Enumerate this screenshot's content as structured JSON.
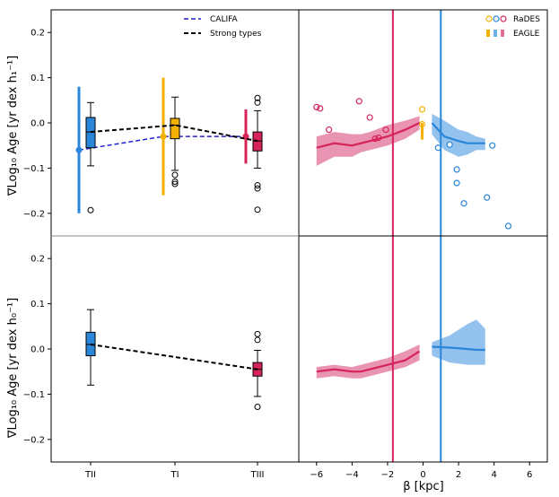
{
  "chart_data": {
    "type": "box+line",
    "ylabel_top": "∇Log₁₀ Age [yr dex h₁⁻¹]",
    "ylabel_bottom": "∇Log₁₀ Age [yr dex h₀⁻¹]",
    "xlabel_right": "β [kpc]",
    "ylim": [
      -0.25,
      0.25
    ],
    "yticks": [
      "0.2",
      "0.1",
      "0.0",
      "−0.1",
      "−0.2"
    ],
    "ytick_values": [
      0.2,
      0.1,
      0.0,
      -0.1,
      -0.2
    ],
    "left_categories": [
      "TII",
      "TI",
      "TIII"
    ],
    "right_xlim": [
      -7,
      7
    ],
    "right_xticks": [
      "−6",
      "−4",
      "−2",
      "0",
      "2",
      "4",
      "6"
    ],
    "right_xtick_values": [
      -6,
      -4,
      -2,
      0,
      2,
      4,
      6
    ],
    "vlines": [
      -1.7,
      1.0
    ],
    "colors": {
      "TII": "#2a86d8",
      "TI": "#f6b100",
      "TIII": "#d6245a",
      "califa_line": "#2222cc",
      "strong_line": "#000000",
      "pink_band": "#e07098",
      "blue_band": "#70aee8"
    },
    "legend_left": [
      {
        "label": "CALIFA",
        "style": "dashed-blue"
      },
      {
        "label": "Strong types",
        "style": "dashed-black"
      }
    ],
    "legend_right": [
      {
        "label": "RaDES",
        "style": "circles"
      },
      {
        "label": "EAGLE",
        "style": "bars"
      }
    ],
    "top_left": {
      "boxes": [
        {
          "cat": "TII",
          "q1": -0.055,
          "median": -0.02,
          "q3": 0.012,
          "wlo": -0.095,
          "whi": 0.045,
          "fliers": [
            -0.193
          ]
        },
        {
          "cat": "TI",
          "q1": -0.035,
          "median": -0.005,
          "q3": 0.01,
          "wlo": -0.105,
          "whi": 0.057,
          "fliers": [
            -0.115,
            -0.13,
            -0.135
          ]
        },
        {
          "cat": "TIII",
          "q1": -0.062,
          "median": -0.04,
          "q3": -0.02,
          "wlo": -0.1,
          "whi": 0.027,
          "fliers": [
            0.055,
            0.045,
            -0.138,
            -0.145,
            -0.192
          ]
        }
      ],
      "strong_types": [
        -0.02,
        -0.005,
        -0.04
      ],
      "califa": [
        {
          "cat": "TII",
          "value": -0.06,
          "err_lo": -0.2,
          "err_hi": 0.08
        },
        {
          "cat": "TI",
          "value": -0.03,
          "err_lo": -0.16,
          "err_hi": 0.1
        },
        {
          "cat": "TIII",
          "value": -0.03,
          "err_lo": -0.09,
          "err_hi": 0.03
        }
      ]
    },
    "bottom_left": {
      "boxes": [
        {
          "cat": "TII",
          "q1": -0.015,
          "median": 0.01,
          "q3": 0.037,
          "wlo": -0.08,
          "whi": 0.087,
          "fliers": []
        },
        {
          "cat": "TIII",
          "q1": -0.06,
          "median": -0.045,
          "q3": -0.03,
          "wlo": -0.105,
          "whi": -0.003,
          "fliers": [
            0.033,
            0.02,
            -0.128
          ]
        }
      ],
      "strong_types": [
        0.01,
        -0.045
      ]
    },
    "top_right": {
      "pink_line": {
        "x": [
          -6.0,
          -5.0,
          -4.0,
          -3.5,
          -3.0,
          -2.0,
          -1.0,
          -0.2
        ],
        "y": [
          -0.055,
          -0.045,
          -0.05,
          -0.045,
          -0.04,
          -0.03,
          -0.015,
          0.0
        ]
      },
      "pink_band": {
        "x": [
          -6.0,
          -5.0,
          -4.0,
          -3.5,
          -3.0,
          -2.0,
          -1.0,
          -0.2
        ],
        "lo": [
          -0.095,
          -0.075,
          -0.075,
          -0.065,
          -0.06,
          -0.05,
          -0.035,
          -0.015
        ],
        "hi": [
          -0.03,
          -0.02,
          -0.025,
          -0.025,
          -0.02,
          -0.005,
          0.005,
          0.015
        ]
      },
      "blue_line": {
        "x": [
          0.5,
          1.2,
          2.0,
          2.5,
          3.0,
          3.5
        ],
        "y": [
          0.0,
          -0.03,
          -0.04,
          -0.045,
          -0.045,
          -0.045
        ]
      },
      "blue_band": {
        "x": [
          0.5,
          1.2,
          2.0,
          2.5,
          3.0,
          3.5
        ],
        "lo": [
          -0.025,
          -0.06,
          -0.075,
          -0.07,
          -0.06,
          -0.06
        ],
        "hi": [
          0.02,
          0.005,
          -0.015,
          -0.02,
          -0.03,
          -0.035
        ]
      },
      "rades_pink": [
        {
          "x": -6.0,
          "y": 0.035
        },
        {
          "x": -5.8,
          "y": 0.032
        },
        {
          "x": -5.3,
          "y": -0.015
        },
        {
          "x": -3.6,
          "y": 0.048
        },
        {
          "x": -3.0,
          "y": 0.012
        },
        {
          "x": -2.7,
          "y": -0.035
        },
        {
          "x": -2.5,
          "y": -0.033
        },
        {
          "x": -2.1,
          "y": -0.015
        }
      ],
      "rades_blue": [
        {
          "x": 0.85,
          "y": -0.055
        },
        {
          "x": 1.5,
          "y": -0.048
        },
        {
          "x": 1.9,
          "y": -0.103
        },
        {
          "x": 1.9,
          "y": -0.133
        },
        {
          "x": 2.3,
          "y": -0.178
        },
        {
          "x": 3.6,
          "y": -0.165
        },
        {
          "x": 3.9,
          "y": -0.05
        },
        {
          "x": 4.8,
          "y": -0.228
        }
      ],
      "rades_orange": [
        {
          "x": -0.05,
          "y": 0.03
        },
        {
          "x": -0.05,
          "y": -0.003
        }
      ],
      "eagle_orange": {
        "x": -0.05,
        "lo": -0.037,
        "hi": 0.0
      }
    },
    "bottom_right": {
      "pink_line": {
        "x": [
          -6.0,
          -5.0,
          -4.0,
          -3.5,
          -3.0,
          -2.0,
          -1.0,
          -0.2
        ],
        "y": [
          -0.05,
          -0.045,
          -0.05,
          -0.05,
          -0.045,
          -0.035,
          -0.025,
          -0.005
        ]
      },
      "pink_band": {
        "x": [
          -6.0,
          -5.0,
          -4.0,
          -3.5,
          -3.0,
          -2.0,
          -1.0,
          -0.2
        ],
        "lo": [
          -0.065,
          -0.06,
          -0.065,
          -0.065,
          -0.06,
          -0.05,
          -0.04,
          -0.025
        ],
        "hi": [
          -0.04,
          -0.035,
          -0.04,
          -0.035,
          -0.03,
          -0.02,
          -0.005,
          0.01
        ]
      },
      "blue_line": {
        "x": [
          0.5,
          1.5,
          2.5,
          3.0,
          3.5
        ],
        "y": [
          0.005,
          0.003,
          0.0,
          -0.002,
          -0.002
        ]
      },
      "blue_band": {
        "x": [
          0.5,
          1.5,
          2.5,
          3.0,
          3.5
        ],
        "lo": [
          -0.015,
          -0.03,
          -0.035,
          -0.035,
          -0.035
        ],
        "hi": [
          0.015,
          0.03,
          0.055,
          0.065,
          0.045
        ]
      }
    }
  }
}
